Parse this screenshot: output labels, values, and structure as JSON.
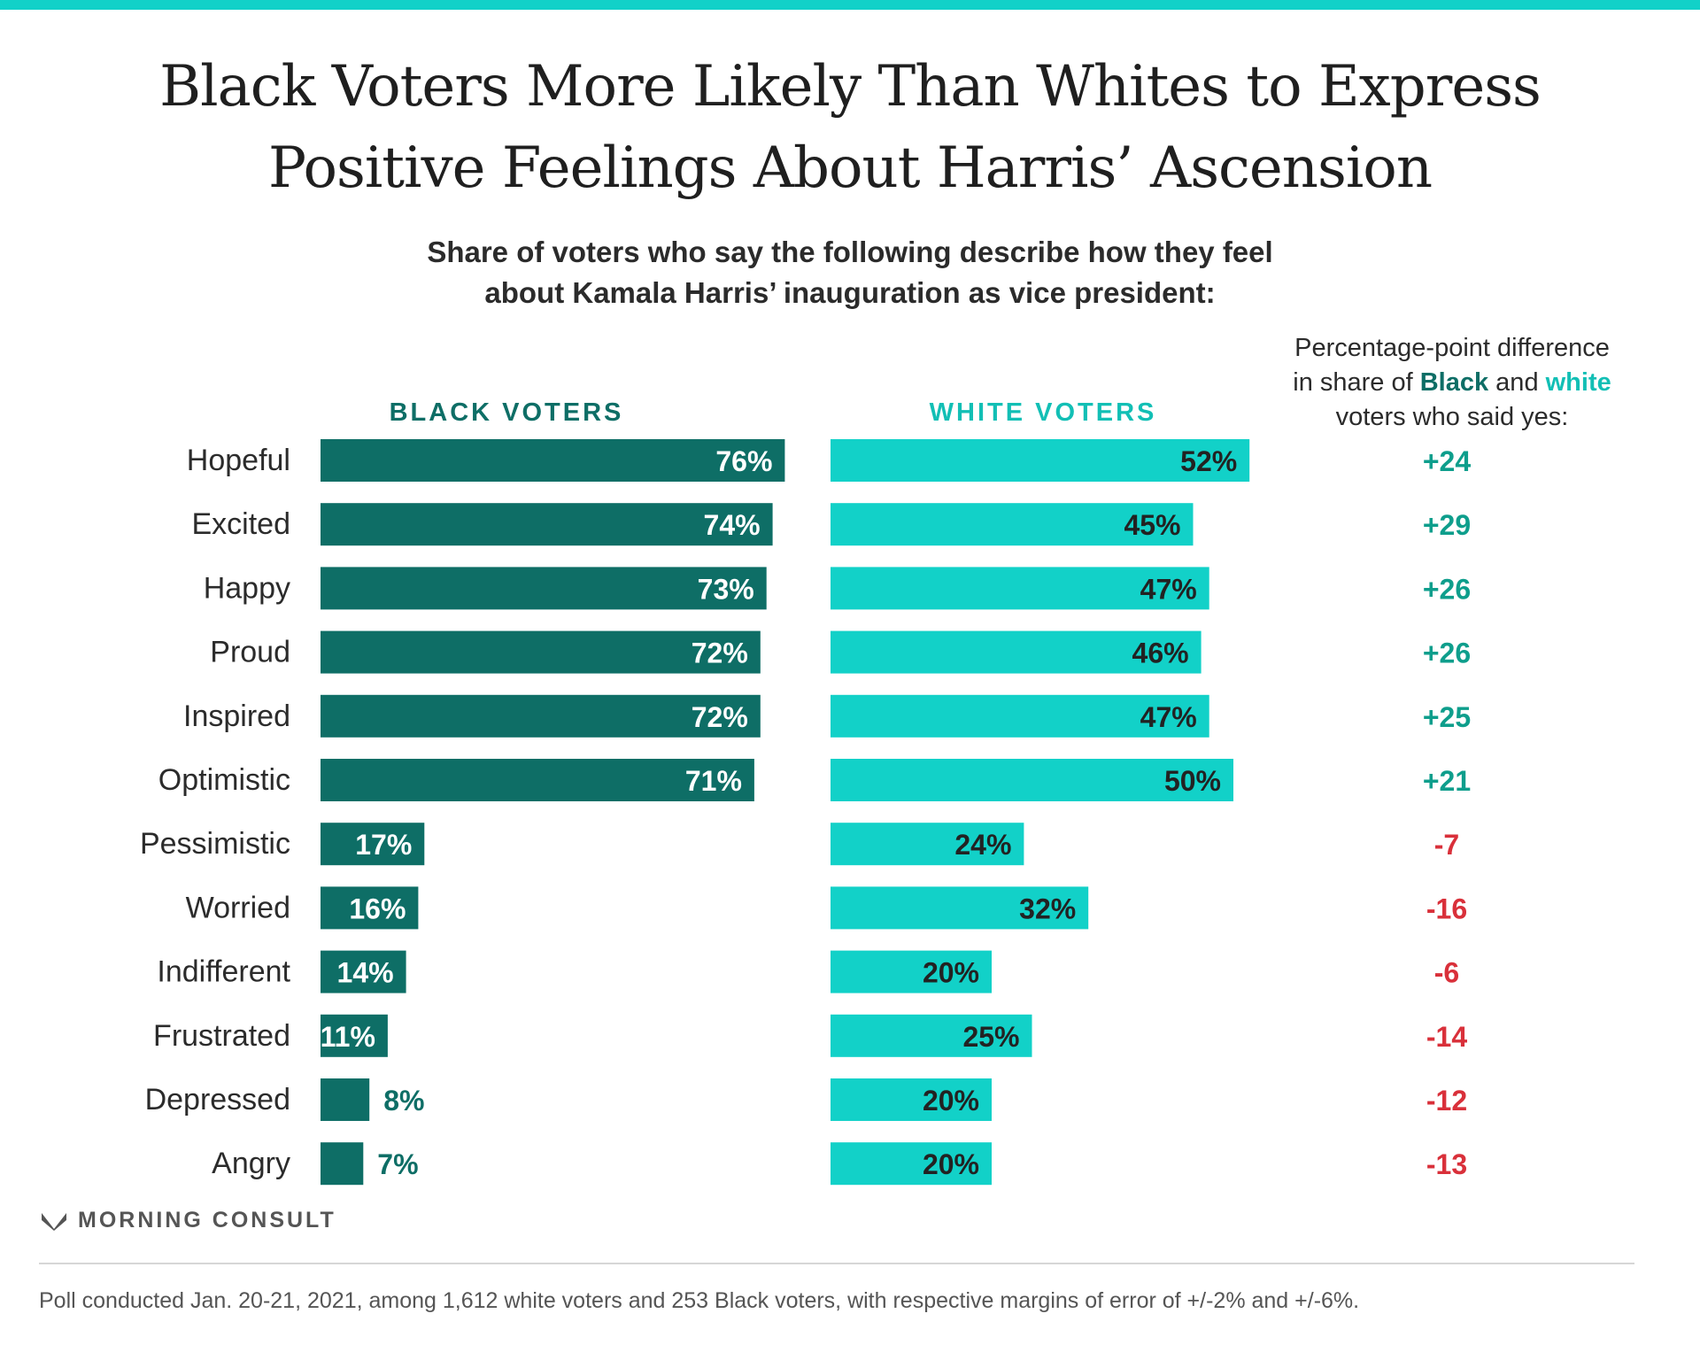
{
  "title_line1": "Black Voters More Likely Than Whites to Express",
  "title_line2": "Positive Feelings About Harris’ Ascension",
  "subtitle_line1": "Share of voters who say the following describe how they feel",
  "subtitle_line2": "about Kamala Harris’ inauguration as vice president:",
  "diff_header": {
    "line1": "Percentage-point difference",
    "line2_prefix": "in share of ",
    "line2_black": "Black",
    "line2_mid": " and ",
    "line2_white": "white",
    "line3": "voters who said yes:"
  },
  "brand": "MORNING CONSULT",
  "footnote": "Poll conducted Jan. 20-21, 2021, among 1,612 white voters and 253 Black voters, with respective margins of error of +/-2% and +/-6%.",
  "colors": {
    "black_series": "#0e6e66",
    "white_series": "#12d1c8",
    "positive_diff": "#0e9e8c",
    "negative_diff": "#d9303a",
    "top_bar": "#12d1c8"
  },
  "chart_data": {
    "type": "bar",
    "orientation": "horizontal",
    "categories": [
      "Hopeful",
      "Excited",
      "Happy",
      "Proud",
      "Inspired",
      "Optimistic",
      "Pessimistic",
      "Worried",
      "Indifferent",
      "Frustrated",
      "Depressed",
      "Angry"
    ],
    "series": [
      {
        "name": "BLACK VOTERS",
        "values": [
          76,
          74,
          73,
          72,
          72,
          71,
          17,
          16,
          14,
          11,
          8,
          7
        ],
        "labels": [
          "76%",
          "74%",
          "73%",
          "72%",
          "72%",
          "71%",
          "17%",
          "16%",
          "14%",
          "11%",
          "8%",
          "7%"
        ]
      },
      {
        "name": "WHITE VOTERS",
        "values": [
          52,
          45,
          47,
          46,
          47,
          50,
          24,
          32,
          20,
          25,
          20,
          20
        ],
        "labels": [
          "52%",
          "45%",
          "47%",
          "46%",
          "47%",
          "50%",
          "24%",
          "32%",
          "20%",
          "25%",
          "20%",
          "20%"
        ]
      }
    ],
    "differences": [
      "+24",
      "+29",
      "+26",
      "+26",
      "+25",
      "+21",
      "-7",
      "-16",
      "-6",
      "-14",
      "-12",
      "-13"
    ],
    "xlim": [
      0,
      100
    ]
  }
}
